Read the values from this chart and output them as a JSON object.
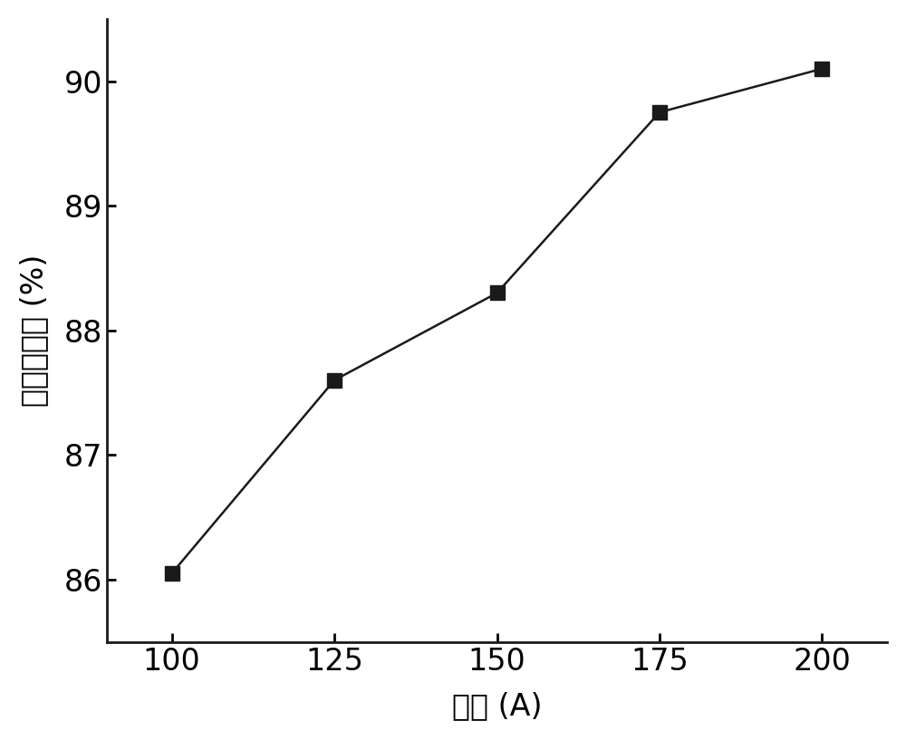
{
  "x": [
    100,
    125,
    150,
    175,
    200
  ],
  "y": [
    86.05,
    87.6,
    88.3,
    89.75,
    90.1
  ],
  "xlabel": "电流 (A)",
  "ylabel": "杂质去除率 (%)",
  "xlim": [
    90,
    210
  ],
  "ylim": [
    85.5,
    90.5
  ],
  "xticks": [
    100,
    125,
    150,
    175,
    200
  ],
  "yticks": [
    86,
    87,
    88,
    89,
    90
  ],
  "line_color": "#1a1a1a",
  "marker_color": "#1a1a1a",
  "marker": "s",
  "marker_size": 11,
  "line_width": 1.8,
  "xlabel_fontsize": 24,
  "ylabel_fontsize": 24,
  "tick_fontsize": 24,
  "background_color": "#ffffff",
  "spine_linewidth": 2.0
}
